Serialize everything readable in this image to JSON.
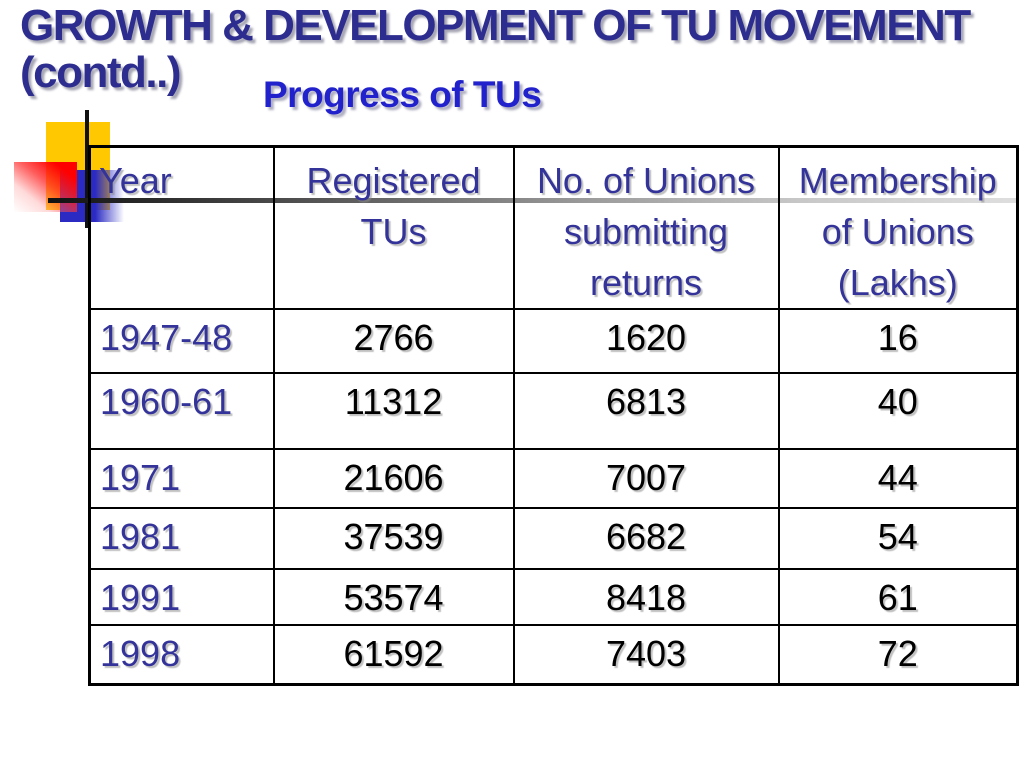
{
  "slide": {
    "title_line1": "GROWTH & DEVELOPMENT OF TU MOVEMENT",
    "title_line2": "(contd..)",
    "subtitle": "Progress of TUs"
  },
  "table": {
    "headers": [
      "Year",
      "Registered\nTUs",
      "No. of Unions\nsubmitting\nreturns",
      "Membership\nof Unions\n(Lakhs)"
    ],
    "rows": [
      {
        "year": "1947-48",
        "registered": "2766",
        "unions_submitting_returns": "1620",
        "membership_lakhs": "16"
      },
      {
        "year": "1960-61",
        "registered": "11312",
        "unions_submitting_returns": "6813",
        "membership_lakhs": "40"
      },
      {
        "year": "1971",
        "registered": "21606",
        "unions_submitting_returns": "7007",
        "membership_lakhs": "44"
      },
      {
        "year": "1981",
        "registered": "37539",
        "unions_submitting_returns": "6682",
        "membership_lakhs": "54"
      },
      {
        "year": "1991",
        "registered": "53574",
        "unions_submitting_returns": "8418",
        "membership_lakhs": "61"
      },
      {
        "year": "1998",
        "registered": "61592",
        "unions_submitting_returns": "7403",
        "membership_lakhs": "72"
      }
    ]
  },
  "colors": {
    "title_color": "#2d2d8f",
    "subtitle_color": "#2222cc",
    "table_text": "#333399",
    "number_text": "#000000",
    "decor_yellow": "#ffc800",
    "decor_red": "#ff0000",
    "decor_blue": "#2b2bc4"
  }
}
